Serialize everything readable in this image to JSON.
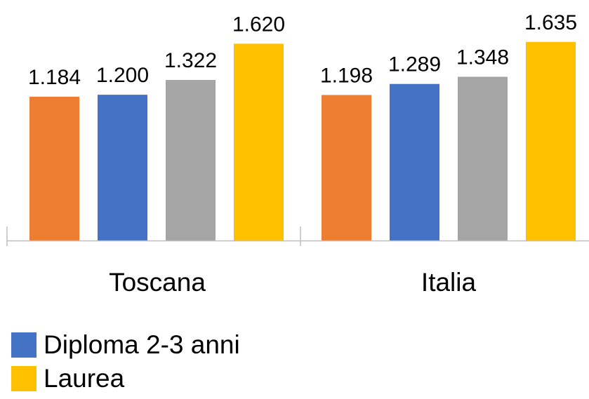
{
  "chart_data": {
    "type": "bar",
    "categories": [
      "Toscana",
      "Italia"
    ],
    "series": [
      {
        "color": "#ED7D31",
        "values": [
          1.184,
          1.198
        ],
        "labels": [
          "1.184",
          "1.198"
        ]
      },
      {
        "name": "Diploma 2-3 anni",
        "color": "#4472C4",
        "values": [
          1.2,
          1.289
        ],
        "labels": [
          "1.200",
          "1.289"
        ]
      },
      {
        "color": "#A5A5A5",
        "values": [
          1.322,
          1.348
        ],
        "labels": [
          "1.322",
          "1.348"
        ]
      },
      {
        "name": "Laurea",
        "color": "#FFC000",
        "values": [
          1.62,
          1.635
        ],
        "labels": [
          "1.620",
          "1.635"
        ]
      }
    ],
    "ylim": [
      0,
      1.98
    ],
    "grid": false,
    "legend": "bottom-left"
  },
  "legend": {
    "items": [
      {
        "label": "Diploma 2-3 anni",
        "color": "#4472C4"
      },
      {
        "label": "Laurea",
        "color": "#FFC000"
      }
    ]
  }
}
